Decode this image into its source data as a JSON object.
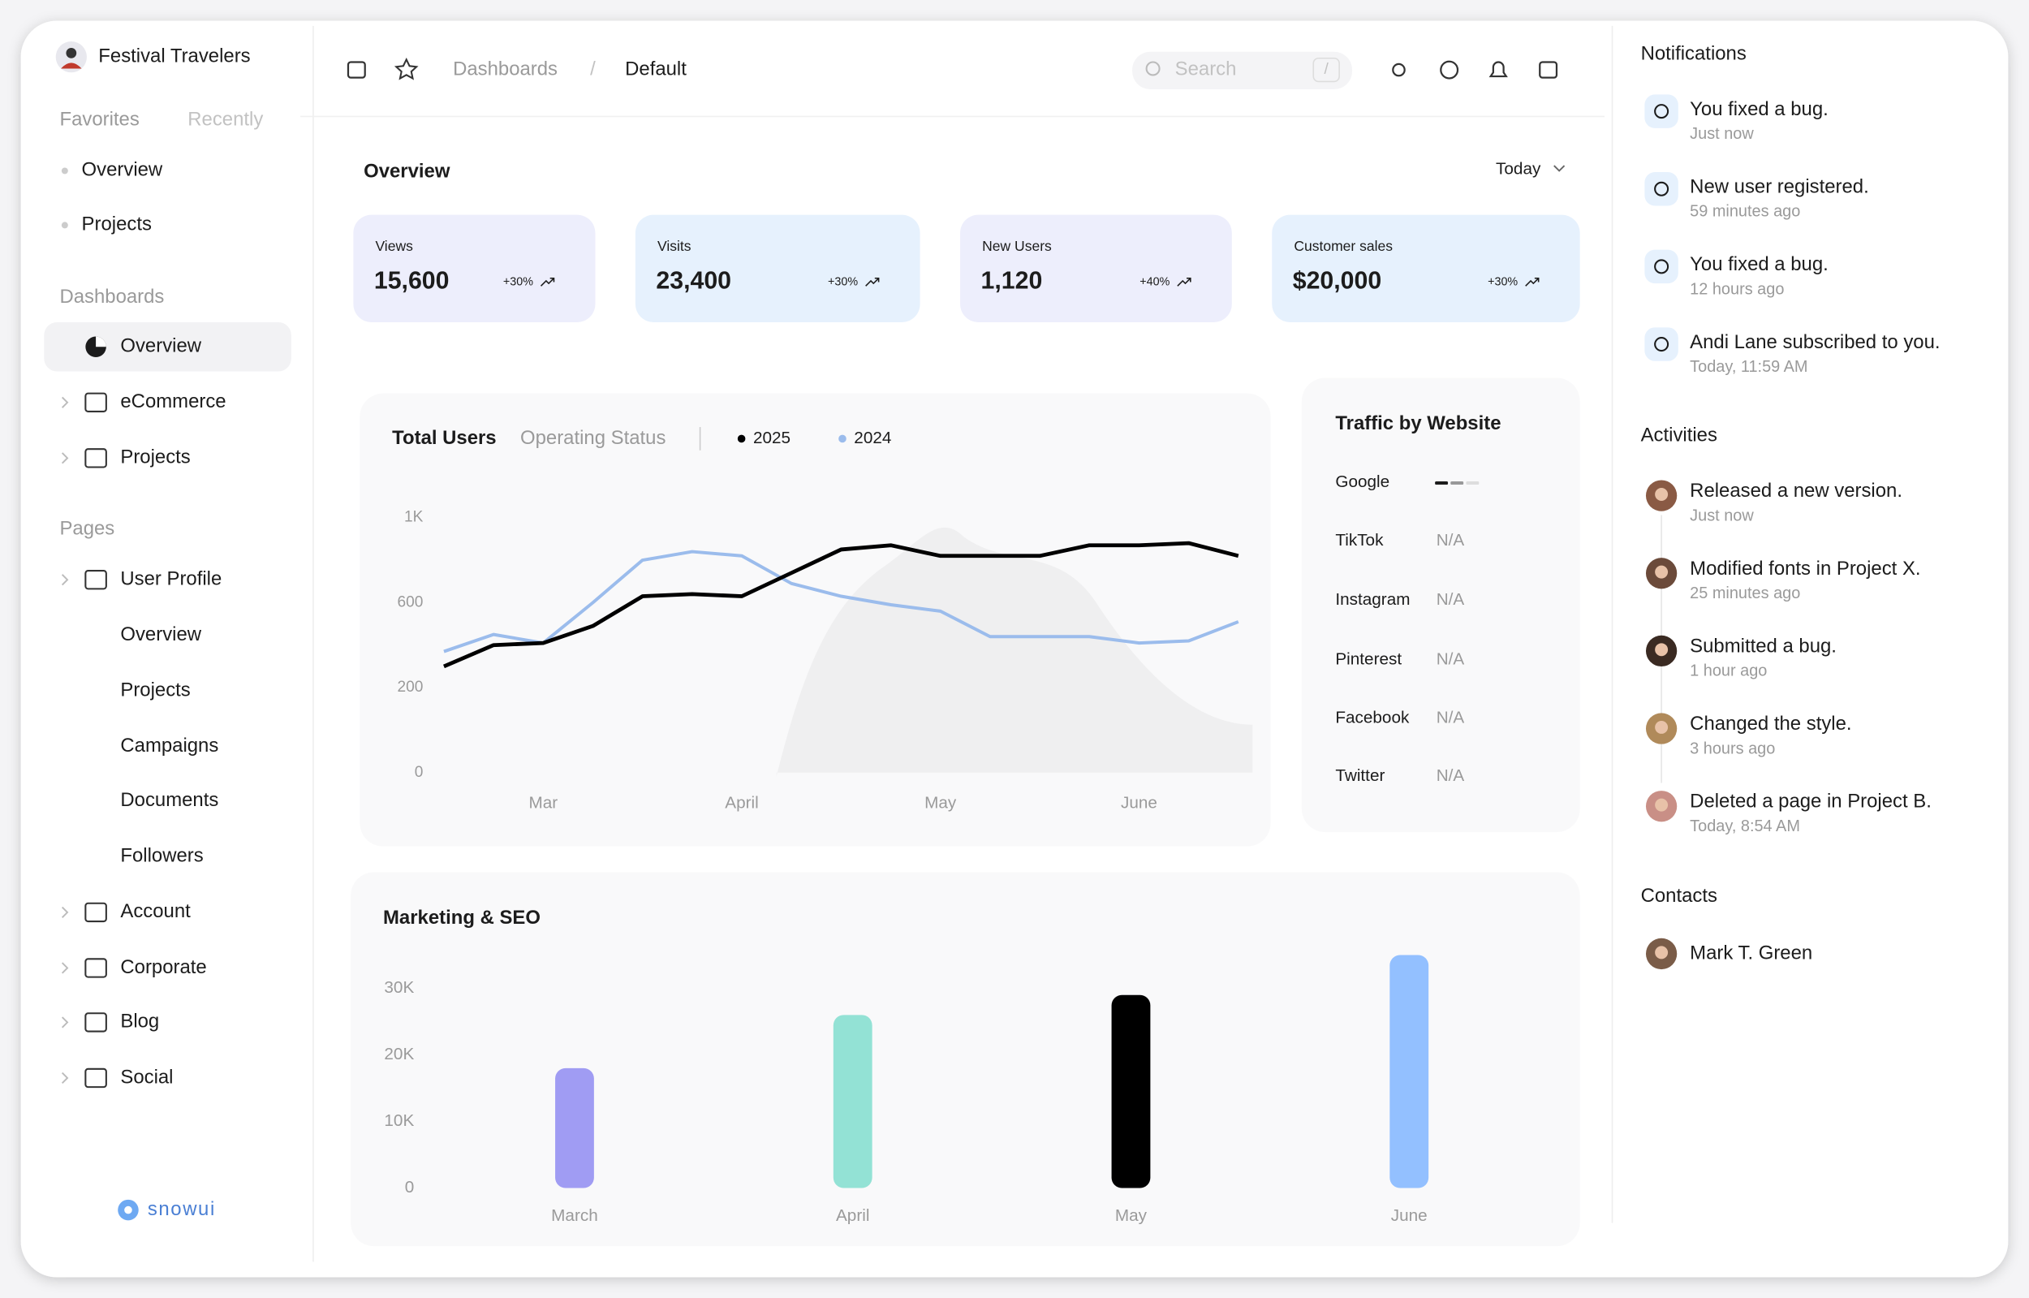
{
  "sidebar": {
    "brand": "Festival Travelers",
    "tabs": [
      "Favorites",
      "Recently"
    ],
    "favorites": [
      "Overview",
      "Projects"
    ],
    "sections": [
      {
        "title": "Dashboards",
        "items": [
          "Overview",
          "eCommerce",
          "Projects"
        ]
      },
      {
        "title": "Pages",
        "items": [
          "User Profile",
          "Overview",
          "Projects",
          "Campaigns",
          "Documents",
          "Followers",
          "Account",
          "Corporate",
          "Blog",
          "Social"
        ]
      }
    ],
    "logo": "snowui"
  },
  "topbar": {
    "breadcrumbs": [
      "Dashboards",
      "/",
      "Default"
    ],
    "search": "Search",
    "shortcut": "/"
  },
  "overview": {
    "title": "Overview",
    "range": "Today",
    "cards": [
      {
        "label": "Views",
        "value": "15,600",
        "change": "+30%"
      },
      {
        "label": "Visits",
        "value": "23,400",
        "change": "+30%"
      },
      {
        "label": "New Users",
        "value": "1,120",
        "change": "+40%"
      },
      {
        "label": "Customer sales",
        "value": "$20,000",
        "change": "+30%"
      }
    ]
  },
  "total_users_chart": {
    "type": "line",
    "title": "Total Users",
    "tab": "Operating Status",
    "categories": [
      null,
      null,
      "Mar",
      null,
      null,
      null,
      "April",
      null,
      null,
      null,
      "May",
      null,
      null,
      null,
      "June",
      null,
      null
    ],
    "series": [
      {
        "name": "2025",
        "color": "#000000",
        "values": [
          300,
          400,
          410,
          490,
          630,
          640,
          630,
          740,
          850,
          870,
          820,
          820,
          820,
          870,
          870,
          880,
          820
        ]
      },
      {
        "name": "2024",
        "color": "#9bbcec",
        "values": [
          370,
          450,
          410,
          600,
          800,
          840,
          820,
          690,
          630,
          590,
          560,
          440,
          440,
          440,
          410,
          420,
          510
        ]
      }
    ],
    "ylim": [
      0,
      1000
    ],
    "yticks": [
      0,
      200,
      600,
      {
        "value": 1000,
        "label": "1K"
      }
    ]
  },
  "traffic": {
    "title": "Traffic by Website",
    "sites": [
      {
        "name": "Google"
      },
      {
        "name": "TikTok",
        "value": "N/A"
      },
      {
        "name": "Instagram",
        "value": "N/A"
      },
      {
        "name": "Pinterest",
        "value": "N/A"
      },
      {
        "name": "Facebook",
        "value": "N/A"
      },
      {
        "name": "Twitter",
        "value": "N/A"
      }
    ]
  },
  "marketing_chart": {
    "type": "bar",
    "title": "Marketing & SEO",
    "categories": [
      "March",
      "April",
      "May",
      "June"
    ],
    "values": [
      18000,
      26000,
      29000,
      35000
    ],
    "colors": [
      "#a09cf3",
      "#93e2d5",
      "#000000",
      "#93c0ff"
    ],
    "ylim": [
      0,
      35000
    ],
    "yticks": [
      0,
      {
        "value": 10000,
        "label": "10K"
      },
      {
        "value": 20000,
        "label": "20K"
      },
      {
        "value": 30000,
        "label": "30K"
      }
    ]
  },
  "notifications": {
    "title": "Notifications",
    "items": [
      {
        "text": "You fixed a bug.",
        "time": "Just now"
      },
      {
        "text": "New user registered.",
        "time": "59 minutes ago"
      },
      {
        "text": "You fixed a bug.",
        "time": "12 hours ago"
      },
      {
        "text": "Andi Lane subscribed to you.",
        "time": "Today, 11:59 AM"
      }
    ]
  },
  "activities": {
    "title": "Activities",
    "items": [
      {
        "text": "Released a new version.",
        "time": "Just now"
      },
      {
        "text": "Modified fonts in Project X.",
        "time": "25 minutes ago"
      },
      {
        "text": "Submitted a bug.",
        "time": "1 hour ago"
      },
      {
        "text": "Changed the style.",
        "time": "3 hours ago"
      },
      {
        "text": "Deleted a page in Project B.",
        "time": "Today, 8:54 AM"
      }
    ]
  },
  "contacts": {
    "title": "Contacts",
    "items": [
      "Mark T. Green"
    ]
  }
}
